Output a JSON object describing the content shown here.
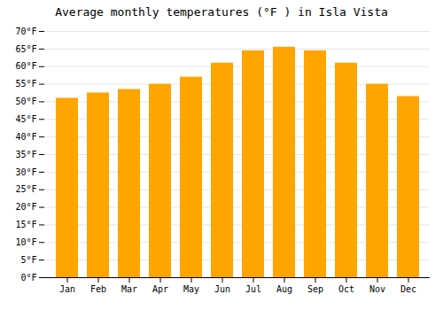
{
  "chart_data": {
    "type": "bar",
    "title": "Average monthly temperatures (°F ) in Isla Vista",
    "categories": [
      "Jan",
      "Feb",
      "Mar",
      "Apr",
      "May",
      "Jun",
      "Jul",
      "Aug",
      "Sep",
      "Oct",
      "Nov",
      "Dec"
    ],
    "values": [
      51,
      52.5,
      53.5,
      55,
      57,
      61,
      64.5,
      65.5,
      64.5,
      61,
      55,
      51.5
    ],
    "color": "#FFA500",
    "ylim": [
      0,
      70
    ],
    "yticks": [
      {
        "value": 0,
        "label": "0°F"
      },
      {
        "value": 5,
        "label": "5°F"
      },
      {
        "value": 10,
        "label": "10°F"
      },
      {
        "value": 15,
        "label": "15°F"
      },
      {
        "value": 20,
        "label": "20°F"
      },
      {
        "value": 25,
        "label": "25°F"
      },
      {
        "value": 30,
        "label": "30°F"
      },
      {
        "value": 35,
        "label": "35°F"
      },
      {
        "value": 40,
        "label": "40°F"
      },
      {
        "value": 45,
        "label": "45°F"
      },
      {
        "value": 50,
        "label": "50°F"
      },
      {
        "value": 55,
        "label": "55°F"
      },
      {
        "value": 60,
        "label": "60°F"
      },
      {
        "value": 65,
        "label": "65°F"
      },
      {
        "value": 70,
        "label": "70°F"
      }
    ],
    "grid": true
  }
}
